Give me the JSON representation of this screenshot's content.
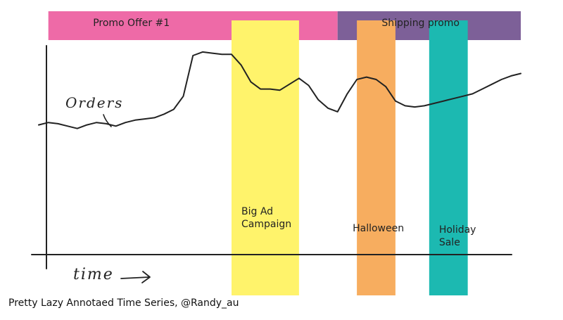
{
  "chart_data": {
    "type": "line",
    "title": "",
    "xlabel": "time",
    "ylabel": "Orders",
    "footer": "Pretty Lazy Annotaed Time Series, @Randy_au",
    "grid": false,
    "legend": "none",
    "x": [
      0,
      2,
      4,
      6,
      8,
      10,
      12,
      14,
      16,
      18,
      20,
      22,
      24,
      26,
      28,
      30,
      32,
      34,
      36,
      38,
      40,
      42,
      44,
      46,
      48,
      50,
      52,
      54,
      56,
      58,
      60,
      62,
      64,
      66,
      68,
      70,
      72,
      74,
      76,
      78,
      80,
      82,
      84,
      86,
      88,
      90,
      92,
      94,
      96,
      98,
      100
    ],
    "series": [
      {
        "name": "",
        "color": "#222222",
        "values": [
          22,
          24,
          23,
          21,
          19,
          22,
          24,
          23,
          21,
          24,
          26,
          27,
          28,
          31,
          35,
          46,
          80,
          83,
          82,
          81,
          81,
          72,
          58,
          52,
          52,
          51,
          56,
          61,
          55,
          43,
          36,
          33,
          48,
          60,
          62,
          60,
          54,
          42,
          38,
          37,
          38,
          40,
          42,
          44,
          46,
          48,
          52,
          56,
          60,
          63,
          65
        ]
      }
    ],
    "bands": [
      {
        "label": "Promo Offer #1",
        "x0": 2,
        "x1": 62,
        "color": "#ee6aa7",
        "row": "top"
      },
      {
        "label": "Shipping promo",
        "x0": 62,
        "x1": 100,
        "color": "#7d6098",
        "row": "top"
      },
      {
        "label": "Big Ad Campaign",
        "lines": [
          "Big Ad",
          "Campaign"
        ],
        "x0": 40,
        "x1": 54,
        "color": "#fff36b",
        "row": "full"
      },
      {
        "label": "Halloween",
        "lines": [
          "Halloween"
        ],
        "x0": 66,
        "x1": 74,
        "color": "#f7ad5f",
        "row": "full"
      },
      {
        "label": "Holiday Sale",
        "lines": [
          "Holiday",
          "Sale"
        ],
        "x0": 81,
        "x1": 89,
        "color": "#1cb9b1",
        "row": "full"
      }
    ]
  }
}
